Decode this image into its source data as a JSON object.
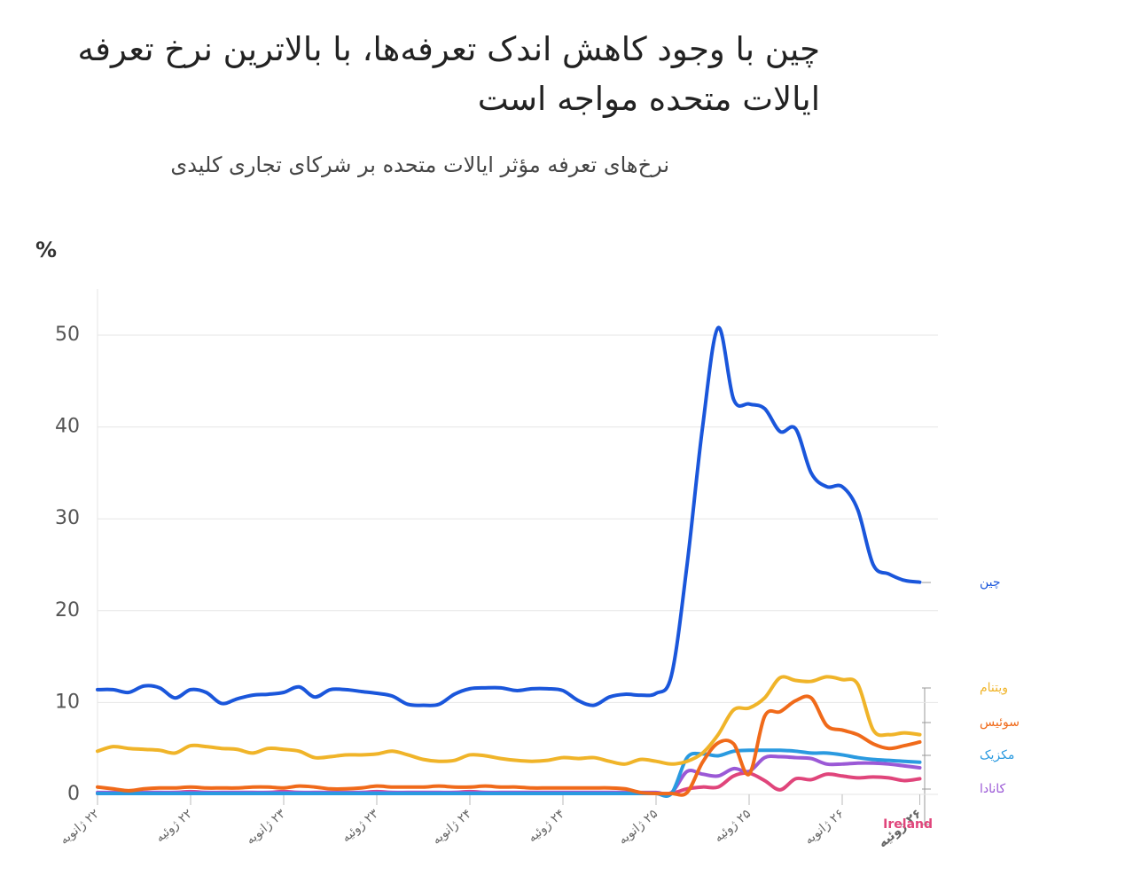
{
  "chart_data": {
    "type": "line",
    "title": "چین با وجود کاهش اندک تعرفه‌ها، با بالاترین نرخ تعرفه ایالات متحده مواجه است",
    "subtitle": "نرخ‌های تعرفه مؤثر ایالات متحده بر شرکای تجاری کلیدی",
    "y_label": "%",
    "categories": [
      "۲۲ ژانویه",
      null,
      null,
      null,
      null,
      null,
      "۲۲ ژوئیه",
      null,
      null,
      null,
      null,
      null,
      "۲۳ ژانویه",
      null,
      null,
      null,
      null,
      null,
      "۲۳ ژوئیه",
      null,
      null,
      null,
      null,
      null,
      "۲۴ ژانویه",
      null,
      null,
      null,
      null,
      null,
      "۲۴ ژوئیه",
      null,
      null,
      null,
      null,
      null,
      "۲۵ ژانویه",
      null,
      null,
      null,
      null,
      null,
      "۲۵ ژوئیه",
      null,
      null,
      null,
      null,
      null,
      "۲۶ ژانویه",
      null,
      null,
      null,
      null,
      "۲۶ ژوئیه"
    ],
    "series": [
      {
        "name": "چین",
        "color": "#1a56db",
        "values": [
          11.4,
          11.4,
          11.1,
          11.8,
          11.6,
          10.5,
          11.4,
          11.1,
          9.9,
          10.4,
          10.8,
          10.9,
          11.1,
          11.7,
          10.6,
          11.4,
          11.4,
          11.2,
          11.0,
          10.7,
          9.8,
          9.7,
          9.8,
          10.9,
          11.5,
          11.6,
          11.6,
          11.3,
          11.5,
          11.5,
          11.3,
          10.2,
          9.7,
          10.6,
          10.9,
          10.8,
          11.0,
          13.0,
          25.0,
          40.0,
          50.8,
          43.0,
          42.5,
          42.0,
          39.5,
          39.8,
          35.0,
          33.5,
          33.5,
          31.0,
          25.0,
          24.0,
          23.3,
          23.1
        ]
      },
      {
        "name": "ویتنام",
        "color": "#f0b429",
        "values": [
          4.7,
          5.2,
          5.0,
          4.9,
          4.8,
          4.5,
          5.3,
          5.2,
          5.0,
          4.9,
          4.5,
          5.0,
          4.9,
          4.7,
          4.0,
          4.1,
          4.3,
          4.3,
          4.4,
          4.7,
          4.3,
          3.8,
          3.6,
          3.7,
          4.3,
          4.2,
          3.9,
          3.7,
          3.6,
          3.7,
          4.0,
          3.9,
          4.0,
          3.6,
          3.3,
          3.8,
          3.6,
          3.3,
          3.6,
          4.5,
          6.5,
          9.2,
          9.4,
          10.5,
          12.7,
          12.4,
          12.3,
          12.8,
          12.5,
          12.0,
          7.0,
          6.5,
          6.7,
          6.5
        ]
      },
      {
        "name": "سوئیس",
        "color": "#f06a1a",
        "values": [
          0.8,
          0.6,
          0.4,
          0.6,
          0.7,
          0.7,
          0.8,
          0.7,
          0.7,
          0.7,
          0.8,
          0.8,
          0.7,
          0.9,
          0.8,
          0.6,
          0.6,
          0.7,
          0.9,
          0.8,
          0.8,
          0.8,
          0.9,
          0.8,
          0.8,
          0.9,
          0.8,
          0.8,
          0.7,
          0.7,
          0.7,
          0.7,
          0.7,
          0.7,
          0.6,
          0.2,
          0.1,
          0.1,
          0.2,
          3.5,
          5.6,
          5.5,
          2.2,
          8.5,
          9.0,
          10.2,
          10.5,
          7.5,
          7.0,
          6.5,
          5.5,
          5.0,
          5.3,
          5.7
        ]
      },
      {
        "name": "مکزیک",
        "color": "#2a9ae0",
        "values": [
          0.1,
          0.1,
          0.1,
          0.1,
          0.1,
          0.1,
          0.1,
          0.1,
          0.1,
          0.1,
          0.1,
          0.1,
          0.1,
          0.1,
          0.1,
          0.1,
          0.1,
          0.1,
          0.1,
          0.1,
          0.1,
          0.1,
          0.1,
          0.1,
          0.1,
          0.1,
          0.1,
          0.1,
          0.1,
          0.1,
          0.1,
          0.1,
          0.1,
          0.1,
          0.1,
          0.1,
          0.1,
          0.1,
          4.0,
          4.4,
          4.2,
          4.7,
          4.8,
          4.8,
          4.8,
          4.7,
          4.5,
          4.5,
          4.3,
          4.0,
          3.8,
          3.7,
          3.6,
          3.5
        ]
      },
      {
        "name": "کانادا",
        "color": "#9b59d6",
        "values": [
          0.2,
          0.2,
          0.2,
          0.2,
          0.2,
          0.2,
          0.2,
          0.2,
          0.2,
          0.2,
          0.2,
          0.2,
          0.2,
          0.2,
          0.2,
          0.2,
          0.2,
          0.2,
          0.2,
          0.2,
          0.2,
          0.2,
          0.2,
          0.2,
          0.2,
          0.2,
          0.2,
          0.2,
          0.2,
          0.2,
          0.2,
          0.2,
          0.2,
          0.2,
          0.2,
          0.2,
          0.2,
          0.2,
          2.5,
          2.2,
          2.0,
          2.8,
          2.5,
          4.0,
          4.1,
          4.0,
          3.9,
          3.3,
          3.3,
          3.4,
          3.4,
          3.3,
          3.1,
          2.9
        ]
      },
      {
        "name": "Ireland",
        "color": "#e0457b",
        "values": [
          0.1,
          0.1,
          0.1,
          0.2,
          0.2,
          0.2,
          0.3,
          0.2,
          0.2,
          0.2,
          0.2,
          0.2,
          0.3,
          0.2,
          0.2,
          0.2,
          0.2,
          0.2,
          0.3,
          0.2,
          0.2,
          0.2,
          0.2,
          0.2,
          0.3,
          0.2,
          0.2,
          0.2,
          0.2,
          0.2,
          0.2,
          0.2,
          0.2,
          0.2,
          0.2,
          0.1,
          0.1,
          0.1,
          0.6,
          0.8,
          0.8,
          2.0,
          2.3,
          1.5,
          0.5,
          1.7,
          1.6,
          2.2,
          2.0,
          1.8,
          1.9,
          1.8,
          1.5,
          1.7
        ]
      }
    ],
    "ylim": [
      0,
      55
    ],
    "yticks": [
      0,
      10,
      20,
      30,
      40,
      50
    ],
    "grid": true
  }
}
